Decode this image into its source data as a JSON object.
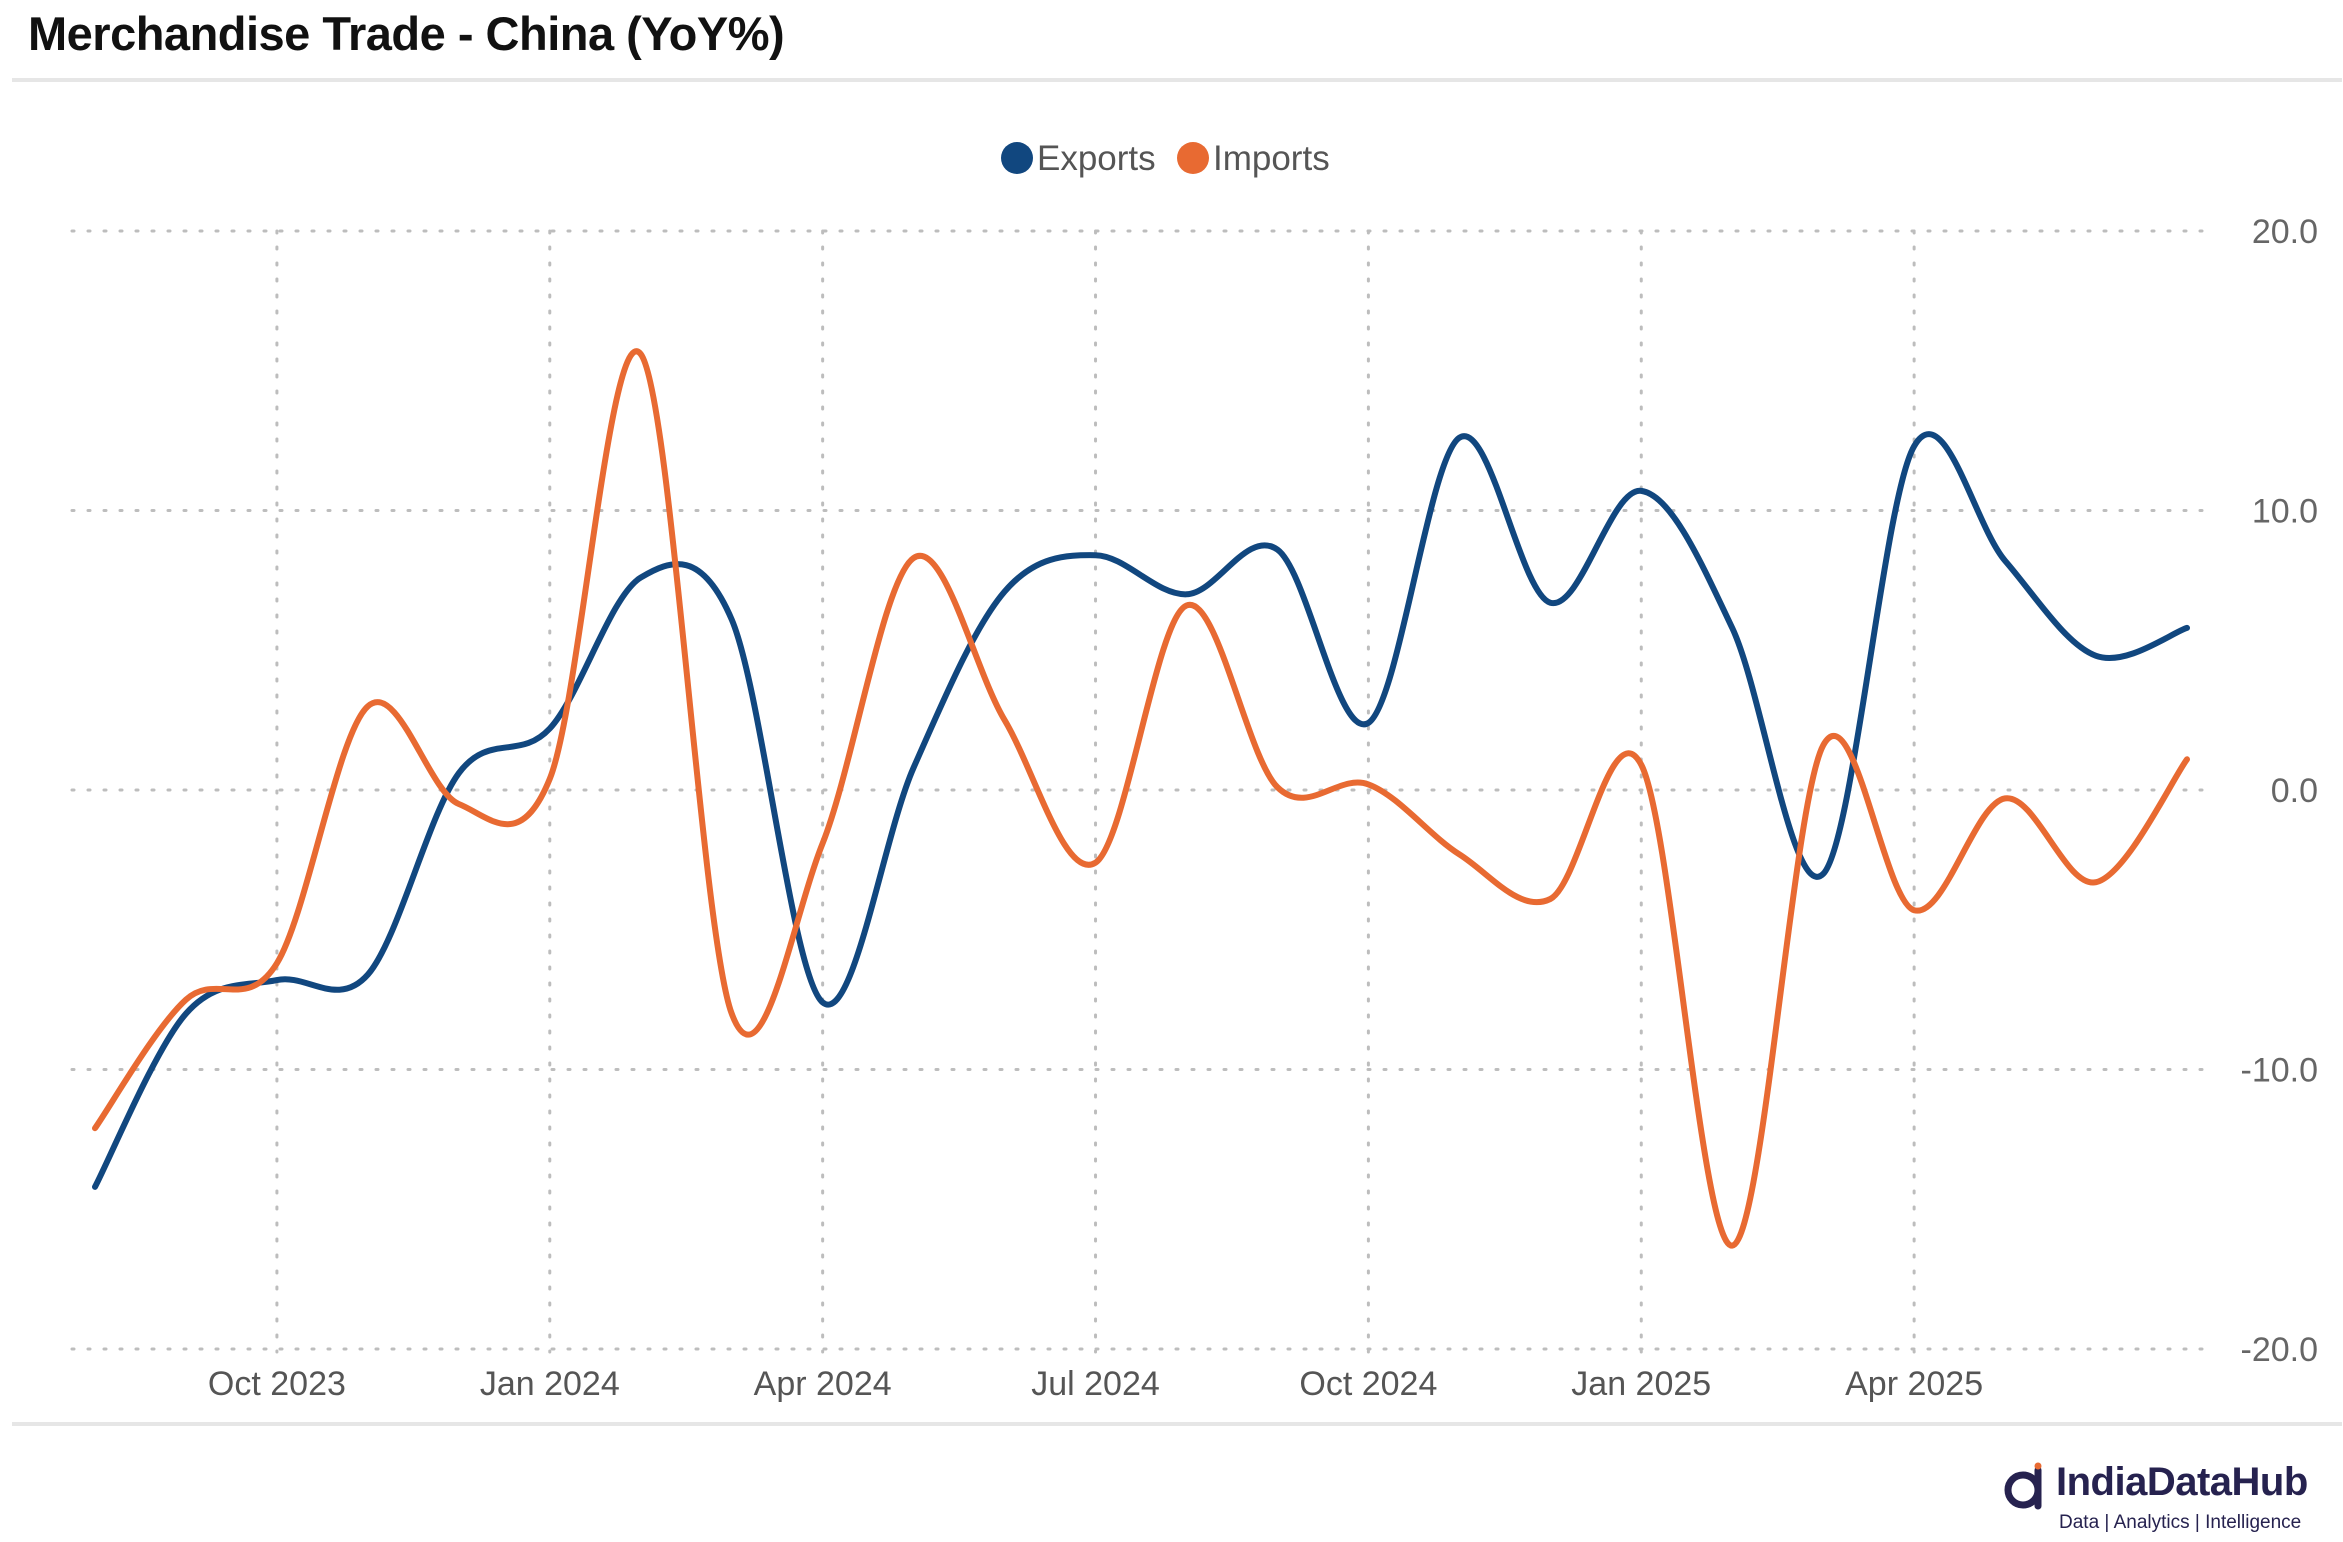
{
  "title": "Merchandise Trade - China (YoY%)",
  "brand": {
    "name": "IndiaDataHub",
    "tagline": "Data | Analytics | Intelligence"
  },
  "chart_data": {
    "type": "line",
    "title": "Merchandise Trade - China (YoY%)",
    "xlabel": "",
    "ylabel": "",
    "ylim": [
      -20,
      20
    ],
    "yticks": [
      20,
      10,
      0,
      -10,
      -20
    ],
    "ytick_labels": [
      "20.0",
      "10.0",
      "0.0",
      "-10.0",
      "-20.0"
    ],
    "xtick_labels": [
      "Oct 2023",
      "Jan 2024",
      "Apr 2024",
      "Jul 2024",
      "Oct 2024",
      "Jan 2025",
      "Apr 2025"
    ],
    "xtick_index": [
      2,
      5,
      8,
      11,
      14,
      17,
      20
    ],
    "grid": true,
    "legend_position": "top-center",
    "categories": [
      "Aug 2023",
      "Sep 2023",
      "Oct 2023",
      "Nov 2023",
      "Dec 2023",
      "Jan 2024",
      "Feb 2024",
      "Mar 2024",
      "Apr 2024",
      "May 2024",
      "Jun 2024",
      "Jul 2024",
      "Aug 2024",
      "Sep 2024",
      "Oct 2024",
      "Nov 2024",
      "Dec 2024",
      "Jan 2025",
      "Feb 2025",
      "Mar 2025",
      "Apr 2025",
      "May 2025",
      "Jun 2025",
      "Jul 2025"
    ],
    "series": [
      {
        "name": "Exports",
        "color": "#11477f",
        "values": [
          -14.2,
          -8.0,
          -6.8,
          -6.6,
          0.6,
          2.2,
          7.6,
          6.1,
          -7.6,
          0.8,
          7.1,
          8.4,
          7.0,
          8.6,
          2.4,
          12.6,
          6.7,
          10.7,
          5.8,
          -3.0,
          12.3,
          8.2,
          4.8,
          5.8
        ]
      },
      {
        "name": "Imports",
        "color": "#e86a32",
        "values": [
          -12.1,
          -7.5,
          -6.2,
          3.0,
          -0.5,
          0.4,
          15.6,
          -8.0,
          -1.9,
          8.3,
          2.5,
          -2.6,
          6.6,
          0.1,
          0.2,
          -2.3,
          -3.9,
          0.9,
          -16.3,
          1.6,
          -4.3,
          -0.3,
          -3.3,
          1.1
        ]
      }
    ]
  }
}
